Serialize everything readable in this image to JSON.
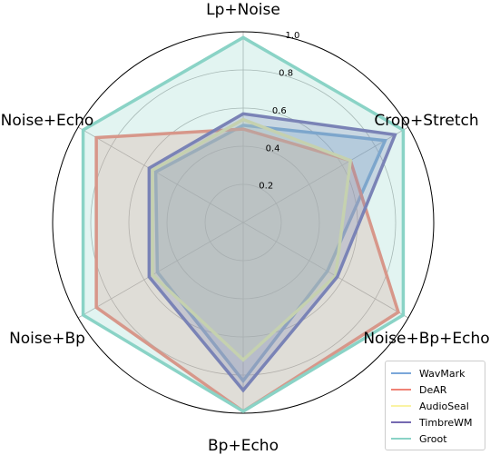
{
  "chart_data": {
    "type": "radar",
    "axes": [
      "Crop+Stretch",
      "Lp+Noise",
      "Noise+Echo",
      "Noise+Bp",
      "Bp+Echo",
      "Noise+Bp+Echo"
    ],
    "radial_ticks": [
      "0.2",
      "0.4",
      "0.6",
      "0.8",
      "1.0"
    ],
    "rlim": [
      0,
      1.0
    ],
    "grid": true,
    "legend_position": "bottom-right",
    "series": [
      {
        "name": "WavMark",
        "color": "#7ba7d9",
        "values": [
          0.86,
          0.51,
          0.53,
          0.52,
          0.83,
          0.51
        ]
      },
      {
        "name": "DeAR",
        "color": "#f08376",
        "values": [
          0.65,
          0.49,
          0.89,
          0.89,
          0.99,
          0.94
        ]
      },
      {
        "name": "AudioSeal",
        "color": "#faf3a4",
        "values": [
          0.65,
          0.54,
          0.55,
          0.55,
          0.72,
          0.56
        ]
      },
      {
        "name": "TimbreWM",
        "color": "#7569b1",
        "values": [
          0.92,
          0.57,
          0.57,
          0.57,
          0.88,
          0.57
        ]
      },
      {
        "name": "Groot",
        "color": "#8ad3c6",
        "values": [
          0.97,
          0.97,
          0.97,
          0.97,
          0.99,
          0.97
        ]
      }
    ]
  }
}
